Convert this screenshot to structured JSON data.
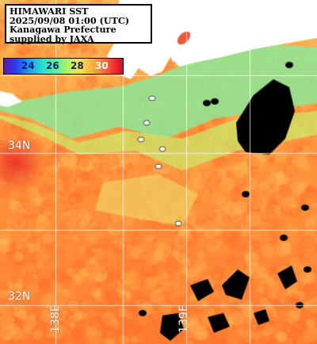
{
  "title": {
    "line1": "HIMAWARI SST",
    "line2": "2025/09/08 01:00 (UTC)",
    "line3": "Kanagawa Prefecture",
    "line4": "supplied by JAXA"
  },
  "colorbar": {
    "ticks": [
      "24",
      "26",
      "28",
      "30"
    ],
    "range_celsius": [
      22,
      31
    ]
  },
  "grid": {
    "lat_labels": [
      "34N",
      "32N"
    ],
    "lon_labels": [
      "138E",
      "139E"
    ]
  },
  "colors": {
    "land": "#ffffff",
    "cloud": "#000000",
    "grid": "#ffffff"
  }
}
